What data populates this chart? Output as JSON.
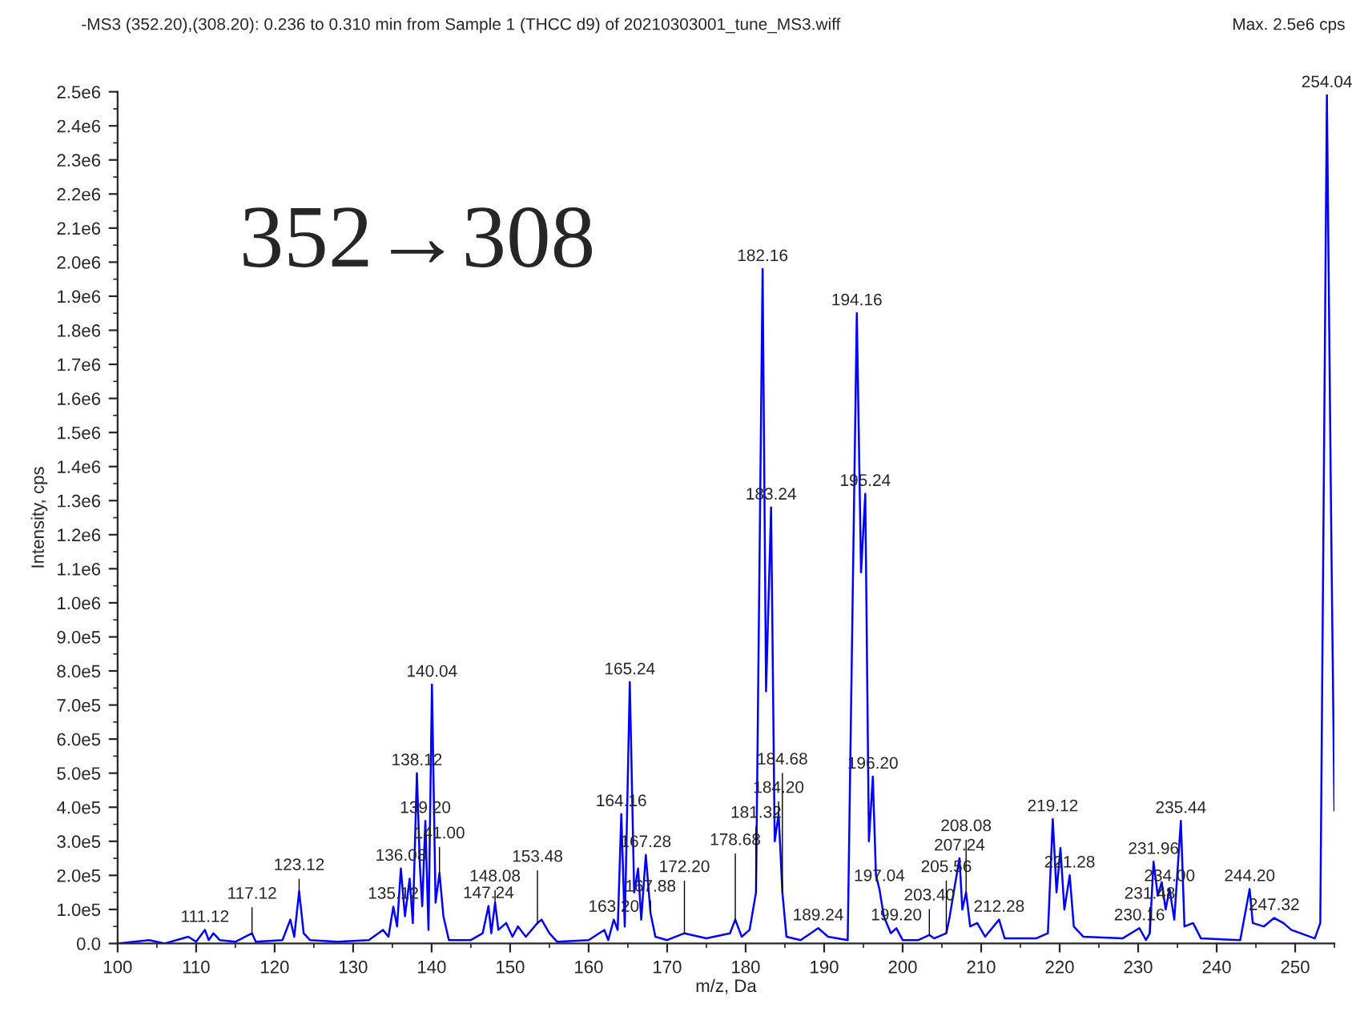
{
  "chart_data": {
    "type": "line",
    "title": "-MS3 (352.20),(308.20): 0.236 to 0.310 min from Sample 1 (THCC d9) of 20210303001_tune_MS3.wiff",
    "xlabel": "m/z, Da",
    "ylabel": "Intensity, cps",
    "xlim": [
      100,
      255
    ],
    "ylim": [
      0,
      2500000
    ],
    "xticks": [
      100,
      110,
      120,
      130,
      140,
      150,
      160,
      170,
      180,
      190,
      200,
      210,
      220,
      230,
      240,
      250
    ],
    "yticks": [
      {
        "value": 0,
        "label": "0.0"
      },
      {
        "value": 100000,
        "label": "1.0e5"
      },
      {
        "value": 200000,
        "label": "2.0e5"
      },
      {
        "value": 300000,
        "label": "3.0e5"
      },
      {
        "value": 400000,
        "label": "4.0e5"
      },
      {
        "value": 500000,
        "label": "5.0e5"
      },
      {
        "value": 600000,
        "label": "6.0e5"
      },
      {
        "value": 700000,
        "label": "7.0e5"
      },
      {
        "value": 800000,
        "label": "8.0e5"
      },
      {
        "value": 900000,
        "label": "9.0e5"
      },
      {
        "value": 1000000,
        "label": "1.0e6"
      },
      {
        "value": 1100000,
        "label": "1.1e6"
      },
      {
        "value": 1200000,
        "label": "1.2e6"
      },
      {
        "value": 1300000,
        "label": "1.3e6"
      },
      {
        "value": 1400000,
        "label": "1.4e6"
      },
      {
        "value": 1500000,
        "label": "1.5e6"
      },
      {
        "value": 1600000,
        "label": "1.6e6"
      },
      {
        "value": 1700000,
        "label": "1.7e6"
      },
      {
        "value": 1800000,
        "label": "1.8e6"
      },
      {
        "value": 1900000,
        "label": "1.9e6"
      },
      {
        "value": 2000000,
        "label": "2.0e6"
      },
      {
        "value": 2100000,
        "label": "2.1e6"
      },
      {
        "value": 2200000,
        "label": "2.2e6"
      },
      {
        "value": 2300000,
        "label": "2.3e6"
      },
      {
        "value": 2400000,
        "label": "2.4e6"
      },
      {
        "value": 2500000,
        "label": "2.5e6"
      }
    ],
    "grid": false,
    "marker": "none",
    "line_style": "solid",
    "series": [
      {
        "color": "#0000ff",
        "x": [
          100,
          104,
          106,
          109,
          110,
          111.12,
          111.6,
          112.2,
          113,
          115,
          117.12,
          117.6,
          121,
          122,
          122.5,
          123.12,
          123.7,
          124.5,
          128,
          132,
          133.8,
          134.5,
          135.12,
          135.6,
          136.08,
          136.6,
          137.2,
          137.6,
          138.12,
          138.5,
          138.8,
          139.2,
          139.6,
          140.04,
          140.5,
          141.0,
          141.5,
          142.2,
          145,
          146.5,
          147.24,
          147.6,
          148.08,
          148.5,
          149.5,
          150.3,
          151,
          152,
          153.48,
          154,
          155,
          156,
          160,
          162,
          162.5,
          163.2,
          163.7,
          164.16,
          164.6,
          165.24,
          165.8,
          166.3,
          166.7,
          167.28,
          167.88,
          168.5,
          170,
          172.2,
          175,
          178,
          178.68,
          179.5,
          180.5,
          181.32,
          182.16,
          182.6,
          183.24,
          183.7,
          184.2,
          184.68,
          185.2,
          187,
          189.24,
          190.5,
          193,
          194.16,
          194.7,
          195.24,
          195.7,
          196.2,
          196.6,
          197.04,
          197.6,
          198.5,
          199.2,
          200,
          202,
          203.4,
          204,
          205.56,
          206,
          206.5,
          207.24,
          207.6,
          208.08,
          208.6,
          209.5,
          210.5,
          212.28,
          213,
          217,
          218.5,
          219.12,
          219.6,
          220.1,
          220.6,
          221.28,
          221.8,
          223,
          228,
          230.16,
          231,
          231.48,
          231.96,
          232.5,
          233,
          233.5,
          234,
          234.6,
          235.44,
          235.9,
          237,
          238,
          243,
          244.2,
          244.6,
          246,
          247.32,
          248.5,
          249.5,
          252.5,
          253.2,
          254.04,
          254.6,
          255
        ],
        "values": [
          0,
          10000,
          0,
          20000,
          5000,
          40000,
          10000,
          30000,
          10000,
          5000,
          30000,
          5000,
          10000,
          70000,
          20000,
          153000,
          30000,
          10000,
          5000,
          10000,
          40000,
          20000,
          108000,
          50000,
          220000,
          80000,
          190000,
          60000,
          500000,
          230000,
          110000,
          360000,
          40000,
          760000,
          120000,
          207000,
          80000,
          10000,
          10000,
          30000,
          110000,
          30000,
          120000,
          40000,
          60000,
          20000,
          50000,
          20000,
          60000,
          70000,
          30000,
          5000,
          10000,
          40000,
          10000,
          70000,
          40000,
          380000,
          50000,
          767000,
          150000,
          220000,
          70000,
          260000,
          90000,
          20000,
          10000,
          30000,
          15000,
          30000,
          70000,
          20000,
          40000,
          150000,
          1980000,
          740000,
          1280000,
          300000,
          380000,
          150000,
          20000,
          10000,
          45000,
          20000,
          10000,
          1850000,
          1090000,
          1320000,
          300000,
          490000,
          200000,
          160000,
          80000,
          30000,
          45000,
          10000,
          10000,
          25000,
          15000,
          30000,
          80000,
          150000,
          250000,
          100000,
          150000,
          50000,
          60000,
          20000,
          70000,
          15000,
          15000,
          30000,
          365000,
          150000,
          280000,
          100000,
          200000,
          50000,
          20000,
          15000,
          45000,
          10000,
          30000,
          240000,
          140000,
          180000,
          100000,
          160000,
          70000,
          360000,
          50000,
          60000,
          15000,
          10000,
          160000,
          60000,
          50000,
          75000,
          60000,
          40000,
          15000,
          60000,
          2490000,
          1200000,
          390000
        ]
      }
    ],
    "annotations": [
      "352→308",
      "Max. 2.5e6 cps",
      {
        "text": "111.12",
        "x": 111.12,
        "y": 40000
      },
      {
        "text": "117.12",
        "x": 117.12,
        "y": 30000
      },
      {
        "text": "123.12",
        "x": 123.12,
        "y": 153000
      },
      {
        "text": "135.12",
        "x": 135.12,
        "y": 108000
      },
      {
        "text": "136.08",
        "x": 136.08,
        "y": 220000
      },
      {
        "text": "138.12",
        "x": 138.12,
        "y": 500000
      },
      {
        "text": "139.20",
        "x": 139.2,
        "y": 360000
      },
      {
        "text": "140.04",
        "x": 140.04,
        "y": 760000
      },
      {
        "text": "141.00",
        "x": 141.0,
        "y": 207000
      },
      {
        "text": "147.24",
        "x": 147.24,
        "y": 110000
      },
      {
        "text": "148.08",
        "x": 148.08,
        "y": 120000
      },
      {
        "text": "153.48",
        "x": 153.48,
        "y": 60000
      },
      {
        "text": "163.20",
        "x": 163.2,
        "y": 70000
      },
      {
        "text": "164.16",
        "x": 164.16,
        "y": 380000
      },
      {
        "text": "165.24",
        "x": 165.24,
        "y": 767000
      },
      {
        "text": "167.28",
        "x": 167.28,
        "y": 260000
      },
      {
        "text": "167.88",
        "x": 167.88,
        "y": 90000
      },
      {
        "text": "172.20",
        "x": 172.2,
        "y": 30000
      },
      {
        "text": "178.68",
        "x": 178.68,
        "y": 70000
      },
      {
        "text": "181.32",
        "x": 181.32,
        "y": 150000
      },
      {
        "text": "182.16",
        "x": 182.16,
        "y": 1980000
      },
      {
        "text": "183.24",
        "x": 183.24,
        "y": 1280000
      },
      {
        "text": "184.20",
        "x": 184.2,
        "y": 380000
      },
      {
        "text": "184.68",
        "x": 184.68,
        "y": 150000
      },
      {
        "text": "189.24",
        "x": 189.24,
        "y": 45000
      },
      {
        "text": "194.16",
        "x": 194.16,
        "y": 1850000
      },
      {
        "text": "195.24",
        "x": 195.24,
        "y": 1320000
      },
      {
        "text": "196.20",
        "x": 196.2,
        "y": 490000
      },
      {
        "text": "197.04",
        "x": 197.04,
        "y": 160000
      },
      {
        "text": "199.20",
        "x": 199.2,
        "y": 45000
      },
      {
        "text": "203.40",
        "x": 203.4,
        "y": 25000
      },
      {
        "text": "205.56",
        "x": 205.56,
        "y": 30000
      },
      {
        "text": "207.24",
        "x": 207.24,
        "y": 250000
      },
      {
        "text": "208.08",
        "x": 208.08,
        "y": 150000
      },
      {
        "text": "212.28",
        "x": 212.28,
        "y": 70000
      },
      {
        "text": "219.12",
        "x": 219.12,
        "y": 365000
      },
      {
        "text": "221.28",
        "x": 221.28,
        "y": 200000
      },
      {
        "text": "230.16",
        "x": 230.16,
        "y": 45000
      },
      {
        "text": "231.48",
        "x": 231.48,
        "y": 30000
      },
      {
        "text": "231.96",
        "x": 231.96,
        "y": 240000
      },
      {
        "text": "234.00",
        "x": 234.0,
        "y": 160000
      },
      {
        "text": "235.44",
        "x": 235.44,
        "y": 360000
      },
      {
        "text": "244.20",
        "x": 244.2,
        "y": 160000
      },
      {
        "text": "247.32",
        "x": 247.32,
        "y": 75000
      },
      {
        "text": "254.04",
        "x": 254.04,
        "y": 2490000
      }
    ]
  }
}
